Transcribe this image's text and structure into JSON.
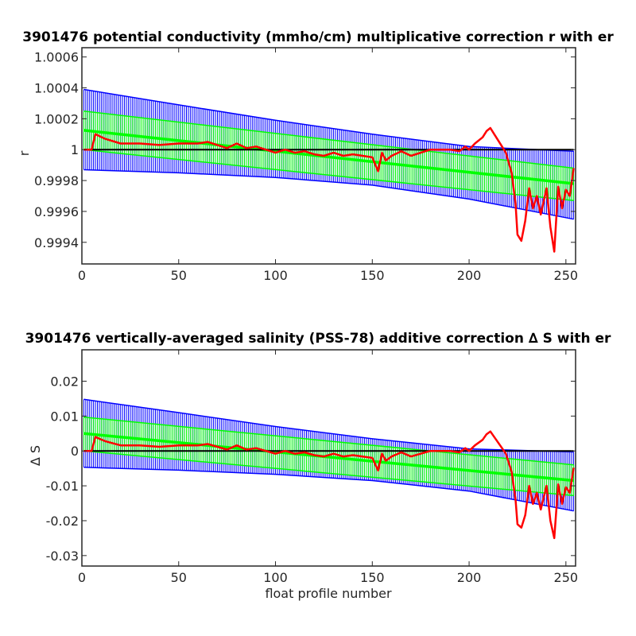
{
  "chart_data": [
    {
      "type": "line",
      "title": "3901476 potential conductivity (mmho/cm) multiplicative correction r with er",
      "xlabel": "",
      "ylabel": "r",
      "xlim": [
        0,
        255
      ],
      "ylim": [
        0.99926,
        1.00066
      ],
      "xticks": [
        0,
        50,
        100,
        150,
        200,
        250
      ],
      "yticks": [
        0.9994,
        0.9996,
        0.9998,
        1,
        1.0002,
        1.0004,
        1.0006
      ],
      "ytick_labels": [
        "0.9994",
        "0.9996",
        "0.9998",
        "1",
        "1.0002",
        "1.0004",
        "1.0006"
      ],
      "reference_line": 1,
      "colors": {
        "error_band": "#0000ff",
        "fit_band": "#00ff00",
        "series": "#ff0000",
        "reference": "#000000"
      },
      "fit_center": [
        [
          1,
          1.000125
        ],
        [
          254,
          0.99978
        ]
      ],
      "fit_upper": [
        [
          1,
          1.00025
        ],
        [
          254,
          0.99988
        ]
      ],
      "fit_lower": [
        [
          1,
          1.0
        ],
        [
          254,
          0.99967
        ]
      ],
      "error_upper": [
        [
          1,
          1.00039
        ],
        [
          50,
          1.00029
        ],
        [
          100,
          1.00019
        ],
        [
          150,
          1.0001
        ],
        [
          200,
          1.00002
        ],
        [
          254,
          0.99999
        ]
      ],
      "error_lower": [
        [
          1,
          0.99987
        ],
        [
          50,
          0.99985
        ],
        [
          100,
          0.99982
        ],
        [
          150,
          0.99977
        ],
        [
          200,
          0.99968
        ],
        [
          254,
          0.99955
        ]
      ],
      "series": {
        "x": [
          1,
          5,
          7,
          12,
          20,
          30,
          40,
          50,
          55,
          60,
          65,
          70,
          75,
          80,
          85,
          90,
          95,
          100,
          105,
          110,
          115,
          120,
          125,
          130,
          135,
          140,
          145,
          150,
          153,
          155,
          157,
          160,
          165,
          170,
          175,
          180,
          185,
          190,
          195,
          198,
          200,
          203,
          207,
          209,
          211,
          213,
          217,
          219,
          222,
          224,
          225,
          227,
          229,
          231,
          233,
          235,
          237,
          240,
          242,
          244,
          246,
          248,
          250,
          252,
          254
        ],
        "y": [
          1.0,
          1.0,
          1.0001,
          1.00007,
          1.00004,
          1.00004,
          1.00003,
          1.00004,
          1.00004,
          1.00004,
          1.00005,
          1.00003,
          1.00001,
          1.00004,
          1.00001,
          1.00002,
          1.0,
          0.99998,
          1.0,
          0.99998,
          0.99999,
          0.99997,
          0.99996,
          0.99998,
          0.99996,
          0.99997,
          0.99996,
          0.99995,
          0.99986,
          0.99998,
          0.99993,
          0.99996,
          0.99999,
          0.99996,
          0.99998,
          1.0,
          1.0,
          1.0,
          0.99999,
          1.00002,
          1.0,
          1.00004,
          1.00008,
          1.00012,
          1.00014,
          1.0001,
          1.00002,
          0.99998,
          0.99985,
          0.99965,
          0.99945,
          0.99941,
          0.99954,
          0.99975,
          0.99962,
          0.9997,
          0.99958,
          0.99975,
          0.9995,
          0.99934,
          0.99976,
          0.99962,
          0.99974,
          0.9997,
          0.99988
        ]
      }
    },
    {
      "type": "line",
      "title": "3901476 vertically-averaged salinity (PSS-78) additive correction ∆ S with er",
      "xlabel": "float profile number",
      "ylabel": "∆ S",
      "xlim": [
        0,
        255
      ],
      "ylim": [
        -0.033,
        0.029
      ],
      "xticks": [
        0,
        50,
        100,
        150,
        200,
        250
      ],
      "yticks": [
        -0.03,
        -0.02,
        -0.01,
        0,
        0.01,
        0.02
      ],
      "ytick_labels": [
        "-0.03",
        "-0.02",
        "-0.01",
        "0",
        "0.01",
        "0.02"
      ],
      "reference_line": 0,
      "colors": {
        "error_band": "#0000ff",
        "fit_band": "#00ff00",
        "series": "#ff0000",
        "reference": "#000000"
      },
      "fit_center": [
        [
          1,
          0.005
        ],
        [
          254,
          -0.0085
        ]
      ],
      "fit_upper": [
        [
          1,
          0.0097
        ],
        [
          254,
          -0.004
        ]
      ],
      "fit_lower": [
        [
          1,
          0.0
        ],
        [
          254,
          -0.0128
        ]
      ],
      "error_upper": [
        [
          1,
          0.0148
        ],
        [
          50,
          0.011
        ],
        [
          100,
          0.007
        ],
        [
          150,
          0.0035
        ],
        [
          200,
          0.0006
        ],
        [
          254,
          -0.0003
        ]
      ],
      "error_lower": [
        [
          1,
          -0.0047
        ],
        [
          50,
          -0.0055
        ],
        [
          100,
          -0.0067
        ],
        [
          150,
          -0.0085
        ],
        [
          200,
          -0.0115
        ],
        [
          254,
          -0.0172
        ]
      ],
      "series": {
        "x": [
          1,
          5,
          7,
          12,
          20,
          30,
          40,
          50,
          55,
          60,
          65,
          70,
          75,
          80,
          85,
          90,
          95,
          100,
          105,
          110,
          115,
          120,
          125,
          130,
          135,
          140,
          145,
          150,
          153,
          155,
          157,
          160,
          165,
          170,
          175,
          180,
          185,
          190,
          195,
          198,
          200,
          203,
          207,
          209,
          211,
          213,
          217,
          219,
          222,
          224,
          225,
          227,
          229,
          231,
          233,
          235,
          237,
          240,
          242,
          244,
          246,
          248,
          250,
          252,
          254
        ],
        "y": [
          0.0,
          0.0,
          0.004,
          0.0028,
          0.0016,
          0.0016,
          0.0012,
          0.0016,
          0.0016,
          0.0016,
          0.002,
          0.0012,
          0.0004,
          0.0016,
          0.0004,
          0.0008,
          0.0,
          -0.0008,
          0.0,
          -0.0008,
          -0.0004,
          -0.0012,
          -0.0016,
          -0.0008,
          -0.0016,
          -0.0012,
          -0.0016,
          -0.002,
          -0.0056,
          -0.0008,
          -0.0028,
          -0.0016,
          -0.0004,
          -0.0016,
          -0.0008,
          0.0,
          0.0,
          0.0,
          -0.0004,
          0.0008,
          0.0,
          0.0016,
          0.0032,
          0.0048,
          0.0056,
          0.004,
          0.0008,
          -0.0008,
          -0.006,
          -0.014,
          -0.021,
          -0.022,
          -0.0184,
          -0.01,
          -0.0152,
          -0.012,
          -0.0168,
          -0.01,
          -0.02,
          -0.025,
          -0.0096,
          -0.0152,
          -0.0104,
          -0.012,
          -0.0048
        ]
      }
    }
  ]
}
